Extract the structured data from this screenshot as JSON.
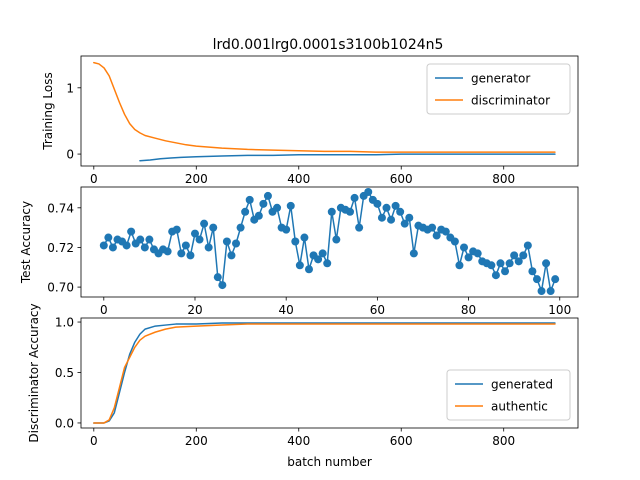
{
  "chart_data": [
    {
      "type": "line",
      "title": "lrd0.001lrg0.0001s3100b1024n5",
      "ylabel": "Training Loss",
      "xlabel": "",
      "xlim": [
        -25,
        945
      ],
      "ylim": [
        -0.18,
        1.48
      ],
      "xticks": [
        0,
        200,
        400,
        600,
        800
      ],
      "yticks": [
        0,
        1
      ],
      "legend_loc": "upper right",
      "series": [
        {
          "name": "generator",
          "color": "#1f77b4",
          "x": [
            90,
            110,
            130,
            150,
            170,
            200,
            250,
            300,
            350,
            400,
            450,
            500,
            550,
            600,
            650,
            700,
            750,
            800,
            850,
            900
          ],
          "y": [
            -0.1,
            -0.09,
            -0.07,
            -0.06,
            -0.05,
            -0.04,
            -0.03,
            -0.02,
            -0.02,
            -0.01,
            -0.01,
            -0.01,
            -0.01,
            0.0,
            0.0,
            0.0,
            0.0,
            0.0,
            0.0,
            0.0
          ]
        },
        {
          "name": "discriminator",
          "color": "#ff7f0e",
          "x": [
            0,
            10,
            20,
            30,
            40,
            50,
            60,
            70,
            80,
            90,
            100,
            120,
            140,
            160,
            180,
            200,
            250,
            300,
            350,
            400,
            450,
            500,
            550,
            600,
            650,
            700,
            750,
            800,
            850,
            900
          ],
          "y": [
            1.38,
            1.36,
            1.3,
            1.18,
            0.98,
            0.78,
            0.6,
            0.46,
            0.37,
            0.32,
            0.28,
            0.24,
            0.2,
            0.17,
            0.14,
            0.12,
            0.09,
            0.07,
            0.06,
            0.05,
            0.04,
            0.04,
            0.03,
            0.03,
            0.03,
            0.03,
            0.03,
            0.03,
            0.03,
            0.03
          ]
        }
      ]
    },
    {
      "type": "line",
      "title": "",
      "ylabel": "Test Accuracy",
      "xlabel": "",
      "xlim": [
        -5,
        104
      ],
      "ylim": [
        0.695,
        0.7505
      ],
      "xticks": [
        0,
        20,
        40,
        60,
        80,
        100
      ],
      "yticks": [
        0.7,
        0.72,
        0.74
      ],
      "markers": true,
      "series": [
        {
          "name": "",
          "color": "#1f77b4",
          "x": [
            0,
            1,
            2,
            3,
            4,
            5,
            6,
            7,
            8,
            9,
            10,
            11,
            12,
            13,
            14,
            15,
            16,
            17,
            18,
            19,
            20,
            21,
            22,
            23,
            24,
            25,
            26,
            27,
            28,
            29,
            30,
            31,
            32,
            33,
            34,
            35,
            36,
            37,
            38,
            39,
            40,
            41,
            42,
            43,
            44,
            45,
            46,
            47,
            48,
            49,
            50,
            51,
            52,
            53,
            54,
            55,
            56,
            57,
            58,
            59,
            60,
            61,
            62,
            63,
            64,
            65,
            66,
            67,
            68,
            69,
            70,
            71,
            72,
            73,
            74,
            75,
            76,
            77,
            78,
            79,
            80,
            81,
            82,
            83,
            84,
            85,
            86,
            87,
            88,
            89,
            90,
            91,
            92,
            93,
            94,
            95,
            96,
            97,
            98,
            99
          ],
          "y": [
            0.721,
            0.725,
            0.72,
            0.724,
            0.723,
            0.721,
            0.728,
            0.722,
            0.724,
            0.72,
            0.724,
            0.719,
            0.717,
            0.719,
            0.718,
            0.728,
            0.729,
            0.717,
            0.721,
            0.716,
            0.727,
            0.724,
            0.732,
            0.72,
            0.73,
            0.705,
            0.701,
            0.723,
            0.716,
            0.722,
            0.73,
            0.738,
            0.744,
            0.734,
            0.736,
            0.742,
            0.746,
            0.738,
            0.74,
            0.73,
            0.729,
            0.741,
            0.723,
            0.711,
            0.725,
            0.709,
            0.716,
            0.714,
            0.717,
            0.712,
            0.738,
            0.724,
            0.74,
            0.739,
            0.738,
            0.745,
            0.73,
            0.746,
            0.748,
            0.744,
            0.742,
            0.735,
            0.74,
            0.734,
            0.741,
            0.738,
            0.732,
            0.735,
            0.717,
            0.731,
            0.73,
            0.729,
            0.73,
            0.726,
            0.729,
            0.728,
            0.725,
            0.723,
            0.711,
            0.72,
            0.715,
            0.718,
            0.717,
            0.713,
            0.712,
            0.711,
            0.706,
            0.712,
            0.708,
            0.712,
            0.716,
            0.713,
            0.716,
            0.721,
            0.708,
            0.704,
            0.698,
            0.712,
            0.698,
            0.704
          ]
        }
      ]
    },
    {
      "type": "line",
      "title": "",
      "ylabel": "Discriminator Accuracy",
      "xlabel": "batch number",
      "xlim": [
        -25,
        945
      ],
      "ylim": [
        -0.05,
        1.04
      ],
      "xticks": [
        0,
        200,
        400,
        600,
        800
      ],
      "yticks": [
        0.0,
        0.5,
        1.0
      ],
      "legend_loc": "lower right",
      "series": [
        {
          "name": "generated",
          "color": "#1f77b4",
          "x": [
            0,
            20,
            30,
            40,
            50,
            60,
            70,
            80,
            90,
            100,
            120,
            140,
            160,
            200,
            250,
            300,
            400,
            500,
            600,
            700,
            800,
            900
          ],
          "y": [
            0.0,
            0.0,
            0.02,
            0.1,
            0.3,
            0.5,
            0.68,
            0.8,
            0.88,
            0.93,
            0.96,
            0.97,
            0.98,
            0.98,
            0.99,
            0.99,
            0.99,
            0.99,
            0.99,
            0.99,
            0.99,
            0.99
          ]
        },
        {
          "name": "authentic",
          "color": "#ff7f0e",
          "x": [
            0,
            20,
            30,
            40,
            50,
            60,
            70,
            80,
            90,
            100,
            120,
            140,
            160,
            200,
            250,
            300,
            400,
            500,
            600,
            700,
            800,
            900
          ],
          "y": [
            0.0,
            0.0,
            0.03,
            0.15,
            0.35,
            0.55,
            0.65,
            0.75,
            0.82,
            0.86,
            0.9,
            0.93,
            0.95,
            0.96,
            0.97,
            0.98,
            0.98,
            0.98,
            0.98,
            0.98,
            0.98,
            0.98
          ]
        }
      ]
    }
  ]
}
